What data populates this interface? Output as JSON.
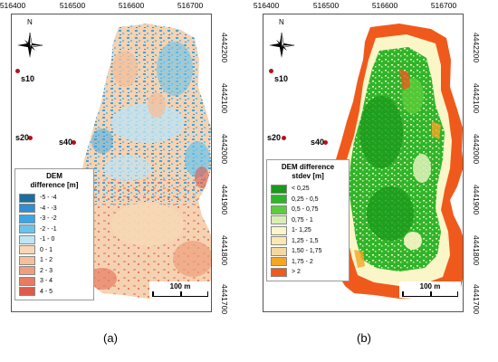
{
  "x_ticks": [
    "516400",
    "516500",
    "516600",
    "516700"
  ],
  "y_ticks": [
    "4442200",
    "4442100",
    "4442000",
    "4441900",
    "4441800",
    "4441700"
  ],
  "north_label": "N",
  "sites": [
    {
      "id": "s10",
      "label": "s10"
    },
    {
      "id": "s20",
      "label": "s20"
    },
    {
      "id": "s40",
      "label": "s40"
    }
  ],
  "scale_label": "100 m",
  "panel_a": {
    "caption": "(a)",
    "legend_title_line1": "DEM",
    "legend_title_line2": "difference [m]",
    "legend": [
      {
        "label": "-5 - -4",
        "color": "#1a6fa0"
      },
      {
        "label": "-4 - -3",
        "color": "#2f8fcf"
      },
      {
        "label": "-3 - -2",
        "color": "#3aa7e4"
      },
      {
        "label": "-2 - -1",
        "color": "#6cc3ea"
      },
      {
        "label": "-1 - 0",
        "color": "#bfe4f3"
      },
      {
        "label": "0 - 1",
        "color": "#f7d8b4"
      },
      {
        "label": "1 - 2",
        "color": "#f3c09c"
      },
      {
        "label": "2 - 3",
        "color": "#ee9e7e"
      },
      {
        "label": "3 - 4",
        "color": "#e77c63"
      },
      {
        "label": "4 - 5",
        "color": "#df5a4c"
      }
    ]
  },
  "panel_b": {
    "caption": "(b)",
    "legend_title_line1": "DEM difference",
    "legend_title_line2": "stdev [m]",
    "legend": [
      {
        "label": "< 0,25",
        "color": "#1a9a1a"
      },
      {
        "label": "0,25 - 0,5",
        "color": "#2fb52a"
      },
      {
        "label": "0,5 - 0,75",
        "color": "#5ccd3a"
      },
      {
        "label": "0,75 - 1",
        "color": "#d8efb4"
      },
      {
        "label": "1- 1,25",
        "color": "#fbf6c8"
      },
      {
        "label": "1,25 - 1,5",
        "color": "#f9e8b0"
      },
      {
        "label": "1,50 - 1,75",
        "color": "#f5d7a0"
      },
      {
        "label": "1,75 - 2",
        "color": "#f5a623"
      },
      {
        "label": "> 2",
        "color": "#ef5a1c"
      }
    ]
  }
}
